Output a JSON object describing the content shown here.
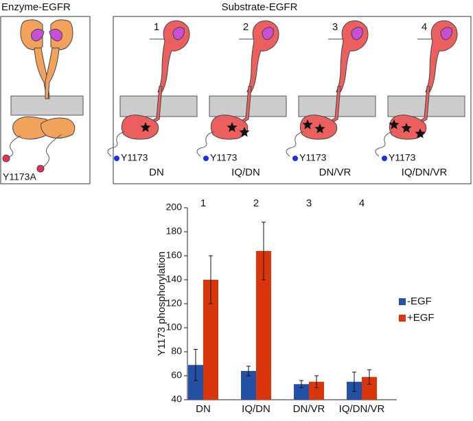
{
  "chart_data": {
    "type": "bar",
    "categories": [
      "DN",
      "IQ/DN",
      "DN/VR",
      "IQ/DN/VR"
    ],
    "category_numbers": [
      "1",
      "2",
      "3",
      "4"
    ],
    "ylabel": "Y1173 phosphorylation",
    "series": [
      {
        "name": "-EGF",
        "color": "#2450a6",
        "values": [
          69,
          64,
          53,
          55
        ],
        "errors": [
          13,
          4,
          3,
          8
        ]
      },
      {
        "name": "+EGF",
        "color": "#d9360c",
        "values": [
          140,
          164,
          55,
          59
        ],
        "errors": [
          20,
          24,
          5,
          6
        ]
      }
    ],
    "ylim": [
      40,
      200
    ],
    "yticks": [
      40,
      60,
      80,
      100,
      120,
      140,
      160,
      180,
      200
    ],
    "legend": "right"
  },
  "diagram": {
    "enzyme_title": "Enzyme-EGFR",
    "substrate_title": "Substrate-EGFR",
    "enzyme_label": "Y1173A",
    "substrates": [
      {
        "number": "1",
        "site": "Y1173",
        "mutant": "DN"
      },
      {
        "number": "2",
        "site": "Y1173",
        "mutant": "IQ/DN"
      },
      {
        "number": "3",
        "site": "Y1173",
        "mutant": "DN/VR"
      },
      {
        "number": "4",
        "site": "Y1173",
        "mutant": "IQ/DN/VR"
      }
    ]
  }
}
